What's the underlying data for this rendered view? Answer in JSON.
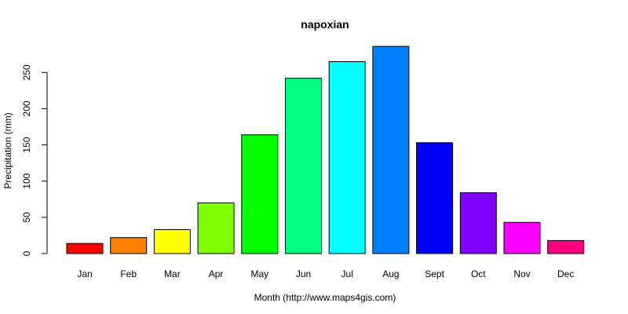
{
  "chart_data": {
    "type": "bar",
    "title": "napoxian",
    "xlabel": "Month (http://www.maps4gis.com)",
    "ylabel": "Precipitation (mm)",
    "categories": [
      "Jan",
      "Feb",
      "Mar",
      "Apr",
      "May",
      "Jun",
      "Jul",
      "Aug",
      "Sept",
      "Oct",
      "Nov",
      "Dec"
    ],
    "values": [
      14,
      22,
      33,
      70,
      164,
      242,
      265,
      286,
      153,
      84,
      43,
      18
    ],
    "colors": [
      "#FF0000",
      "#FF8000",
      "#FFFF00",
      "#80FF00",
      "#00FF00",
      "#00FF80",
      "#00FFFF",
      "#0080FF",
      "#0000FF",
      "#8000FF",
      "#FF00FF",
      "#FF0080"
    ],
    "yticks": [
      0,
      50,
      100,
      150,
      200,
      250
    ],
    "ylim": [
      0,
      286
    ],
    "grid": false,
    "legend": "none"
  }
}
